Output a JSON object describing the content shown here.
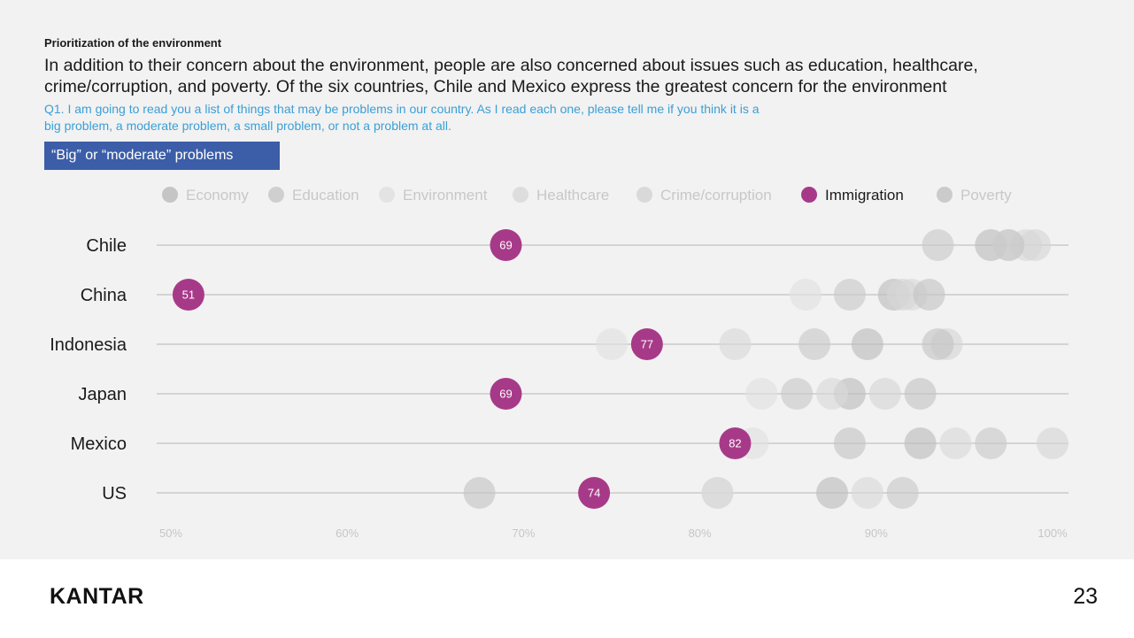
{
  "header": {
    "section_label": "Prioritization of the environment",
    "headline": "In addition to their concern about the environment, people are also concerned about issues such as education, healthcare, crime/corruption, and poverty. Of the six countries, Chile and Mexico express the greatest concern for the environment",
    "question": "Q1. I am going to read you a list of things that may be problems in our country. As I read each one, please tell me if you think it is a big problem, a moderate problem, a small problem, or not a problem at all.",
    "filter_badge": "“Big” or “moderate” problems"
  },
  "chart_data": {
    "type": "scatter",
    "subtype": "dot-plot",
    "title": "",
    "xlabel": "",
    "ylabel": "",
    "xlim": [
      50,
      100
    ],
    "x_ticks": [
      "50%",
      "60%",
      "70%",
      "80%",
      "90%",
      "100%"
    ],
    "x_tick_values": [
      50,
      60,
      70,
      80,
      90,
      100
    ],
    "grid": false,
    "legend_position": "top",
    "highlight_series": "Immigration",
    "categories": [
      "Chile",
      "China",
      "Indonesia",
      "Japan",
      "Mexico",
      "US"
    ],
    "series": [
      {
        "name": "Economy",
        "color": "#bdbdbd",
        "values": [
          96.5,
          91,
          89.5,
          88.5,
          92.5,
          87.5
        ]
      },
      {
        "name": "Education",
        "color": "#c9c9c9",
        "values": [
          93.5,
          88.5,
          86.5,
          85.5,
          96.5,
          91.5
        ]
      },
      {
        "name": "Environment",
        "color": "#e0e0e0",
        "values": [
          97.5,
          86,
          75,
          83.5,
          83,
          81
        ]
      },
      {
        "name": "Healthcare",
        "color": "#d9d9d9",
        "values": [
          98.5,
          92,
          82,
          87.5,
          94.5,
          89.5
        ]
      },
      {
        "name": "Crime/corruption",
        "color": "#d5d5d5",
        "values": [
          99,
          91.5,
          94,
          90.5,
          100,
          81
        ]
      },
      {
        "name": "Immigration",
        "color": "#a73a88",
        "values": [
          69,
          51,
          77,
          69,
          82,
          74
        ]
      },
      {
        "name": "Poverty",
        "color": "#c4c4c4",
        "values": [
          97.5,
          93,
          93.5,
          92.5,
          88.5,
          67.5
        ]
      }
    ],
    "data_labels": {
      "series": "Immigration",
      "values": [
        "69",
        "51",
        "77",
        "69",
        "82",
        "74"
      ]
    }
  },
  "footer": {
    "logo_text": "KANTAR",
    "page_number": "23"
  }
}
